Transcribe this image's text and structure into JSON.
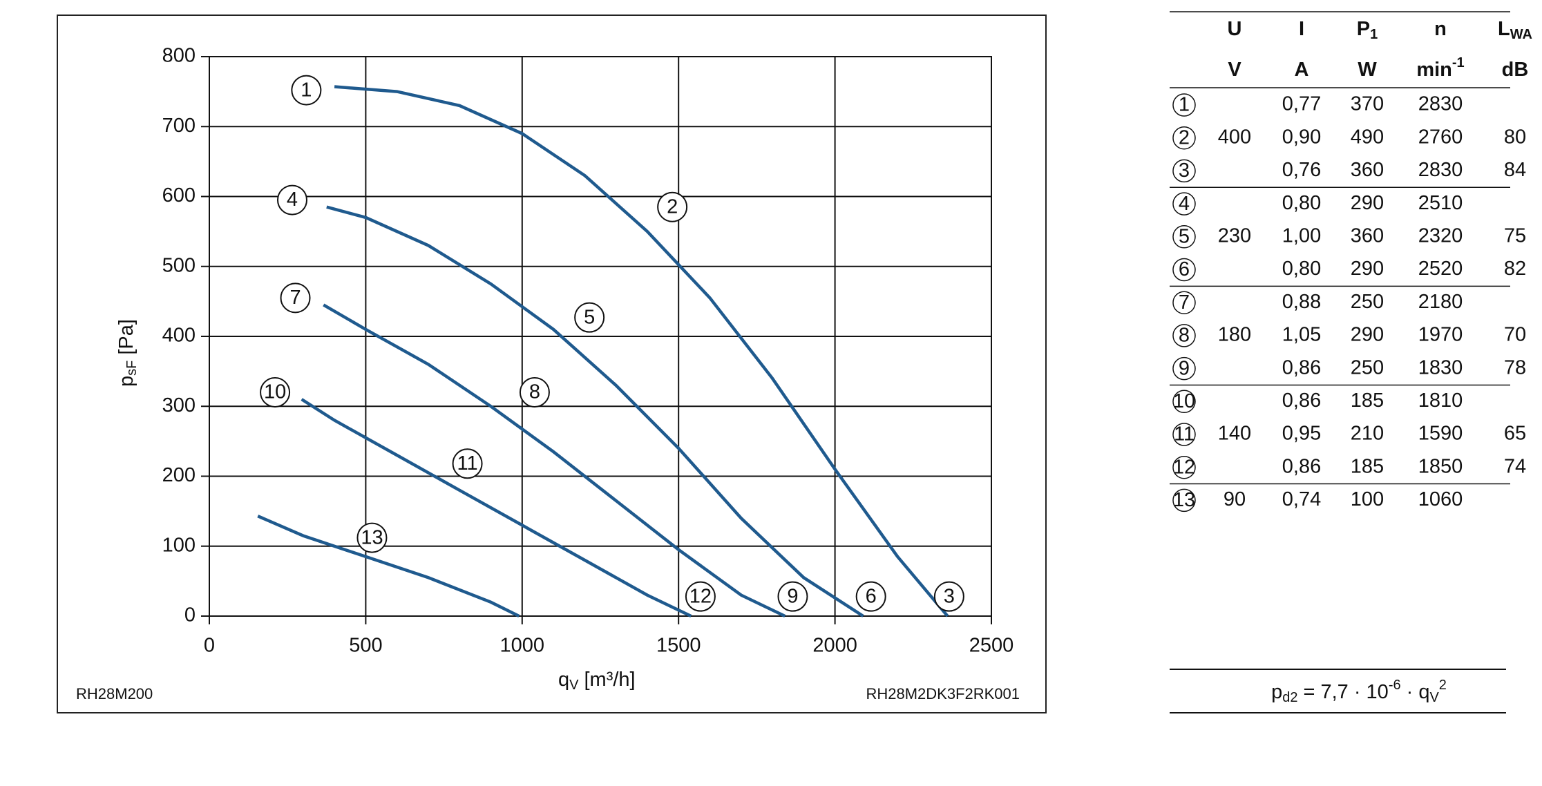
{
  "chart_data": {
    "type": "line",
    "x_label": {
      "main": "q",
      "sub": "V",
      "rest": "[m³/h]"
    },
    "y_label": {
      "main": "p",
      "sub": "sF",
      "rest": "[Pa]"
    },
    "footer_left": "RH28M200",
    "footer_right": "RH28M2DK3F2RK001",
    "xlim": [
      0,
      2500
    ],
    "xticks": [
      0,
      500,
      1000,
      1500,
      2000,
      2500
    ],
    "ylim": [
      0,
      800
    ],
    "yticks": [
      0,
      100,
      200,
      300,
      400,
      500,
      600,
      700,
      800
    ],
    "grid": true,
    "series": [
      {
        "color": "#1f5a8e",
        "x": [
          400,
          600,
          800,
          1000,
          1200,
          1400,
          1600,
          1800,
          2000,
          2200,
          2360
        ],
        "values": [
          757,
          750,
          730,
          690,
          630,
          550,
          455,
          340,
          210,
          85,
          0
        ]
      },
      {
        "color": "#1f5a8e",
        "x": [
          375,
          500,
          700,
          900,
          1100,
          1300,
          1500,
          1700,
          1900,
          2090
        ],
        "values": [
          585,
          570,
          530,
          475,
          410,
          330,
          240,
          140,
          55,
          0
        ]
      },
      {
        "color": "#1f5a8e",
        "x": [
          365,
          500,
          700,
          900,
          1100,
          1300,
          1500,
          1700,
          1840
        ],
        "values": [
          445,
          410,
          360,
          300,
          235,
          165,
          95,
          30,
          0
        ]
      },
      {
        "color": "#1f5a8e",
        "x": [
          295,
          400,
          600,
          800,
          1000,
          1200,
          1400,
          1540
        ],
        "values": [
          310,
          280,
          230,
          180,
          130,
          80,
          30,
          0
        ]
      },
      {
        "color": "#1f5a8e",
        "x": [
          155,
          300,
          500,
          700,
          900,
          990
        ],
        "values": [
          143,
          115,
          85,
          55,
          20,
          0
        ]
      }
    ],
    "annotations": [
      "1",
      "2",
      "3",
      "4",
      "5",
      "6",
      "7",
      "8",
      "9",
      "10",
      "11",
      "12",
      "13"
    ]
  },
  "table": {
    "columns": [
      {
        "symbol": "U",
        "unit": "V"
      },
      {
        "symbol": "I",
        "unit": "A"
      },
      {
        "symbol": "P",
        "sub": "1",
        "unit": "W"
      },
      {
        "symbol": "n",
        "unit": "min",
        "unit_sup": "-1"
      },
      {
        "symbol": "L",
        "sub": "WA",
        "unit": "dB"
      }
    ],
    "groups": [
      {
        "U": "400",
        "rows": [
          {
            "id": "1",
            "I": "0,77",
            "P": "370",
            "n": "2830"
          },
          {
            "id": "2",
            "I": "0,90",
            "P": "490",
            "n": "2760",
            "L": "80"
          },
          {
            "id": "3",
            "I": "0,76",
            "P": "360",
            "n": "2830",
            "L": "84"
          }
        ]
      },
      {
        "U": "230",
        "rows": [
          {
            "id": "4",
            "I": "0,80",
            "P": "290",
            "n": "2510"
          },
          {
            "id": "5",
            "I": "1,00",
            "P": "360",
            "n": "2320",
            "L": "75"
          },
          {
            "id": "6",
            "I": "0,80",
            "P": "290",
            "n": "2520",
            "L": "82"
          }
        ]
      },
      {
        "U": "180",
        "rows": [
          {
            "id": "7",
            "I": "0,88",
            "P": "250",
            "n": "2180"
          },
          {
            "id": "8",
            "I": "1,05",
            "P": "290",
            "n": "1970",
            "L": "70"
          },
          {
            "id": "9",
            "I": "0,86",
            "P": "250",
            "n": "1830",
            "L": "78"
          }
        ]
      },
      {
        "U": "140",
        "rows": [
          {
            "id": "10",
            "I": "0,86",
            "P": "185",
            "n": "1810"
          },
          {
            "id": "11",
            "I": "0,95",
            "P": "210",
            "n": "1590",
            "L": "65"
          },
          {
            "id": "12",
            "I": "0,86",
            "P": "185",
            "n": "1850",
            "L": "74"
          }
        ]
      },
      {
        "U": "90",
        "rows": [
          {
            "id": "13",
            "I": "0,74",
            "P": "100",
            "n": "1060"
          }
        ]
      }
    ]
  },
  "formula": {
    "p": "p",
    "p_sub": "d2",
    "eq": "= 7,7 · 10",
    "exp": "-6",
    "mid": "· q",
    "q_sub": "V",
    "q_sup": "2"
  }
}
